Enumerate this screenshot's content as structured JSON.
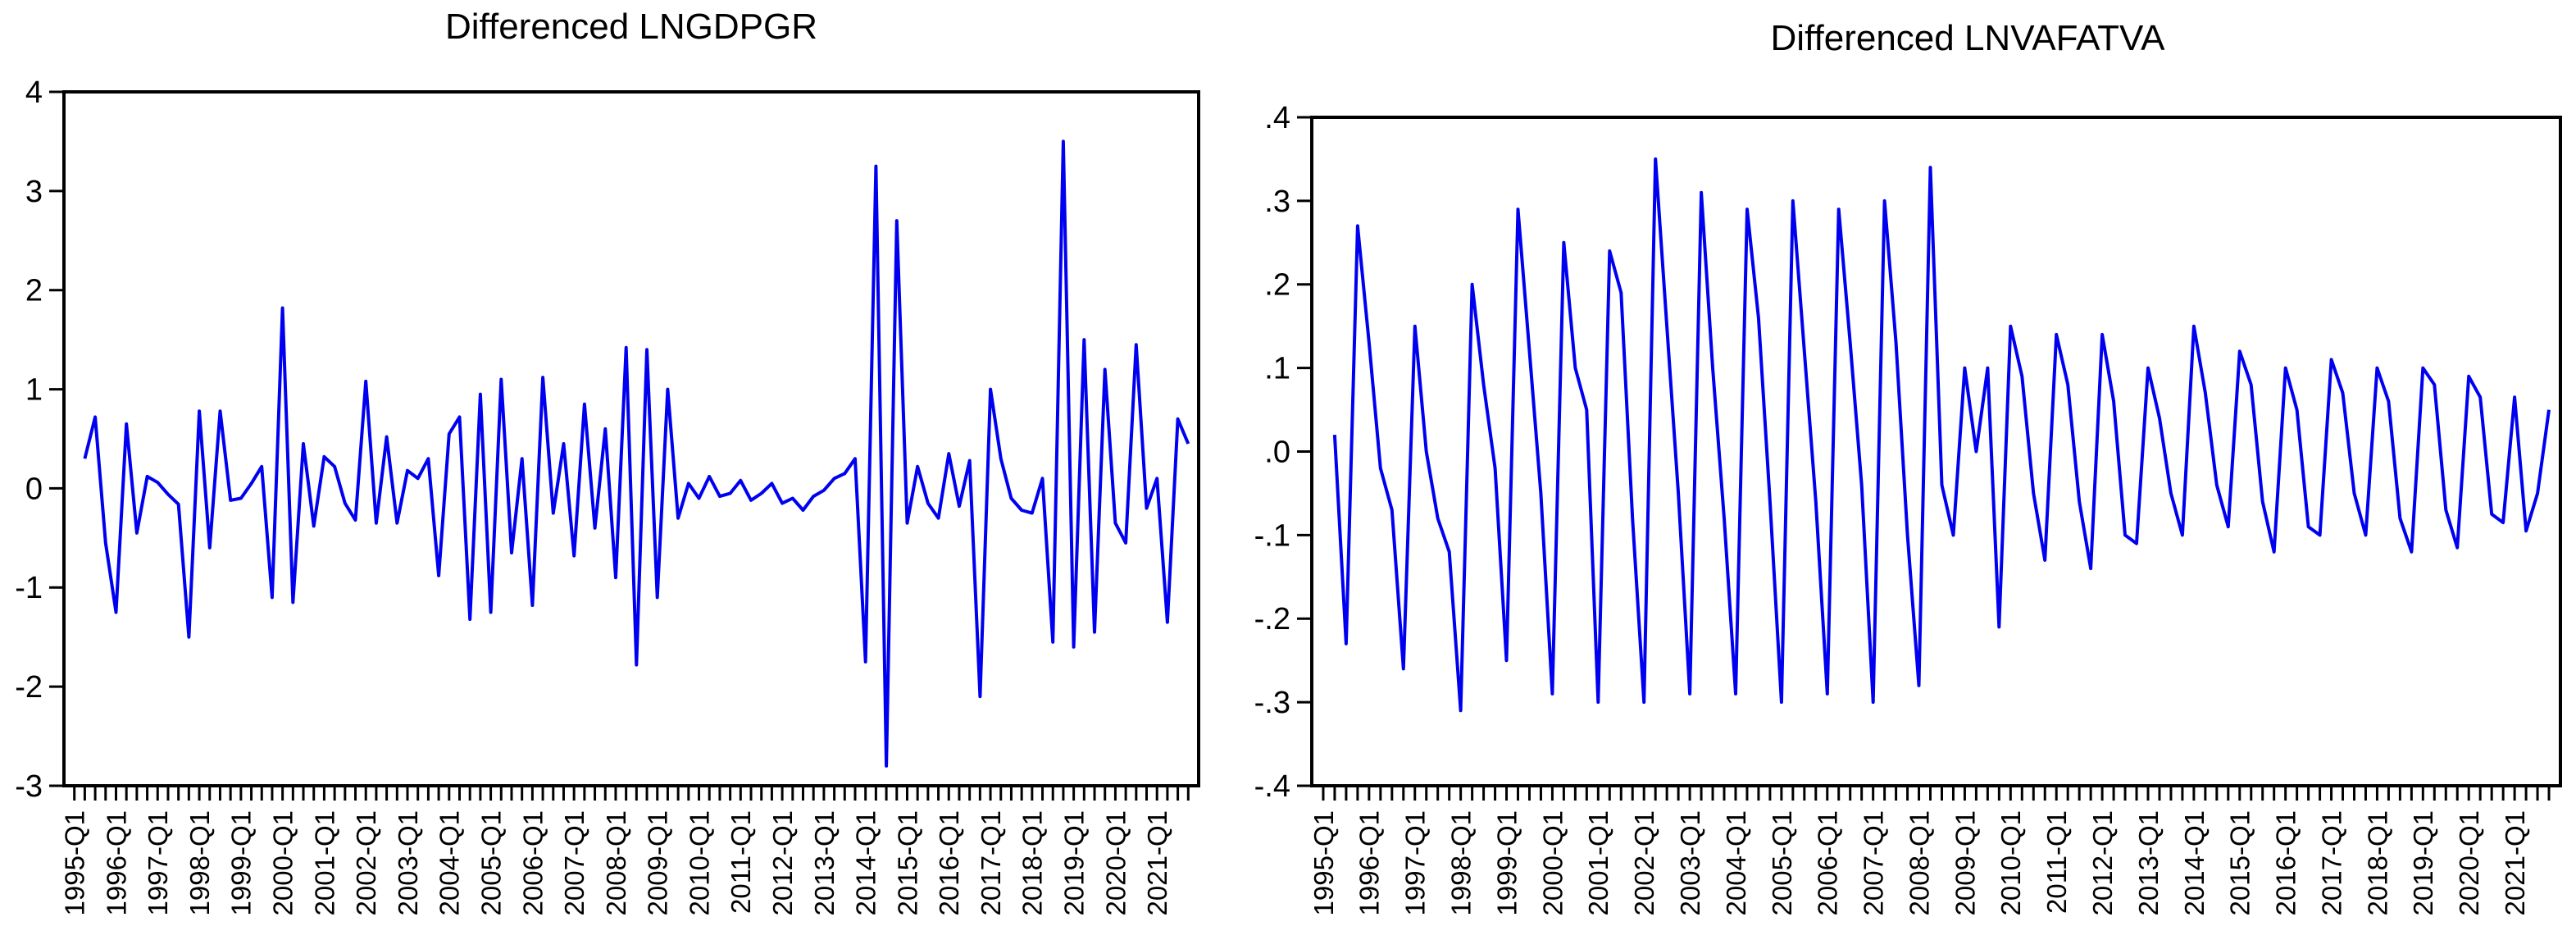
{
  "page": {
    "background_color": "#ffffff",
    "line_color": "#0000f0",
    "axis_color": "#000000"
  },
  "chart_data": [
    {
      "type": "line",
      "title": "Differenced LNGDPGR",
      "legend": "none",
      "grid": false,
      "line_color": "#0000f0",
      "x_freq": "quarterly",
      "x_start": "1995-Q2",
      "x_total_quarters": 108,
      "x_label_every": 4,
      "x_tick_labels": [
        "1995-Q1",
        "1996-Q1",
        "1997-Q1",
        "1998-Q1",
        "1999-Q1",
        "2000-Q1",
        "2001-Q1",
        "2002-Q1",
        "2003-Q1",
        "2004-Q1",
        "2005-Q1",
        "2006-Q1",
        "2007-Q1",
        "2008-Q1",
        "2009-Q1",
        "2010-Q1",
        "2011-Q1",
        "2012-Q1",
        "2013-Q1",
        "2014-Q1",
        "2015-Q1",
        "2016-Q1",
        "2017-Q1",
        "2018-Q1",
        "2019-Q1",
        "2020-Q1",
        "2021-Q1"
      ],
      "ylim": [
        -3,
        4
      ],
      "y_ticks": [
        4,
        3,
        2,
        1,
        0,
        -1,
        -2,
        -3
      ],
      "y_tick_labels": [
        "4",
        "3",
        "2",
        "1",
        "0",
        "-1",
        "-2",
        "-3"
      ],
      "series": [
        {
          "name": "Differenced LNGDPGR",
          "values": [
            0.3,
            0.72,
            -0.55,
            -1.25,
            0.65,
            -0.45,
            0.12,
            0.06,
            -0.06,
            -0.16,
            -1.5,
            0.78,
            -0.6,
            0.78,
            -0.12,
            -0.1,
            0.05,
            0.22,
            -1.1,
            1.82,
            -1.15,
            0.45,
            -0.38,
            0.32,
            0.22,
            -0.15,
            -0.32,
            1.08,
            -0.35,
            0.52,
            -0.35,
            0.18,
            0.1,
            0.3,
            -0.88,
            0.55,
            0.72,
            -1.32,
            0.95,
            -1.25,
            1.1,
            -0.65,
            0.3,
            -1.18,
            1.12,
            -0.25,
            0.45,
            -0.68,
            0.85,
            -0.4,
            0.6,
            -0.9,
            1.42,
            -1.78,
            1.4,
            -1.1,
            1.0,
            -0.3,
            0.05,
            -0.1,
            0.12,
            -0.08,
            -0.05,
            0.08,
            -0.12,
            -0.05,
            0.05,
            -0.15,
            -0.1,
            -0.22,
            -0.08,
            -0.02,
            0.1,
            0.15,
            0.3,
            -1.75,
            3.25,
            -2.8,
            2.7,
            -0.35,
            0.22,
            -0.15,
            -0.3,
            0.35,
            -0.18,
            0.28,
            -2.1,
            1.0,
            0.3,
            -0.1,
            -0.22,
            -0.25,
            0.1,
            -1.55,
            3.5,
            -1.6,
            1.5,
            -1.45,
            1.2,
            -0.35,
            -0.55,
            1.45,
            -0.2,
            0.1,
            -1.35,
            0.7,
            0.45
          ]
        }
      ]
    },
    {
      "type": "line",
      "title": "Differenced LNVAFATVA",
      "legend": "none",
      "grid": false,
      "line_color": "#0000f0",
      "x_freq": "quarterly",
      "x_start": "1995-Q2",
      "x_total_quarters": 108,
      "x_label_every": 4,
      "x_tick_labels": [
        "1995-Q1",
        "1996-Q1",
        "1997-Q1",
        "1998-Q1",
        "1999-Q1",
        "2000-Q1",
        "2001-Q1",
        "2002-Q1",
        "2003-Q1",
        "2004-Q1",
        "2005-Q1",
        "2006-Q1",
        "2007-Q1",
        "2008-Q1",
        "2009-Q1",
        "2010-Q1",
        "2011-Q1",
        "2012-Q1",
        "2013-Q1",
        "2014-Q1",
        "2015-Q1",
        "2016-Q1",
        "2017-Q1",
        "2018-Q1",
        "2019-Q1",
        "2020-Q1",
        "2021-Q1"
      ],
      "ylim": [
        -0.4,
        0.4
      ],
      "y_ticks": [
        0.4,
        0.3,
        0.2,
        0.1,
        0.0,
        -0.1,
        -0.2,
        -0.3,
        -0.4
      ],
      "y_tick_labels": [
        ".4",
        ".3",
        ".2",
        ".1",
        ".0",
        "-.1",
        "-.2",
        "-.3",
        "-.4"
      ],
      "series": [
        {
          "name": "Differenced LNVAFATVA",
          "values": [
            0.02,
            -0.23,
            0.27,
            0.13,
            -0.02,
            -0.07,
            -0.26,
            0.15,
            0.0,
            -0.08,
            -0.12,
            -0.31,
            0.2,
            0.08,
            -0.02,
            -0.25,
            0.29,
            0.12,
            -0.05,
            -0.29,
            0.25,
            0.1,
            0.05,
            -0.3,
            0.24,
            0.19,
            -0.08,
            -0.3,
            0.35,
            0.15,
            -0.05,
            -0.29,
            0.31,
            0.1,
            -0.08,
            -0.29,
            0.29,
            0.16,
            -0.06,
            -0.3,
            0.3,
            0.12,
            -0.06,
            -0.29,
            0.29,
            0.13,
            -0.04,
            -0.3,
            0.3,
            0.13,
            -0.1,
            -0.28,
            0.34,
            -0.04,
            -0.1,
            0.1,
            0.0,
            0.1,
            -0.21,
            0.15,
            0.09,
            -0.05,
            -0.13,
            0.14,
            0.08,
            -0.06,
            -0.14,
            0.14,
            0.06,
            -0.1,
            -0.11,
            0.1,
            0.04,
            -0.05,
            -0.1,
            0.15,
            0.07,
            -0.04,
            -0.09,
            0.12,
            0.08,
            -0.06,
            -0.12,
            0.1,
            0.05,
            -0.09,
            -0.1,
            0.11,
            0.07,
            -0.05,
            -0.1,
            0.1,
            0.06,
            -0.08,
            -0.12,
            0.1,
            0.08,
            -0.07,
            -0.115,
            0.09,
            0.065,
            -0.075,
            -0.085,
            0.065,
            -0.095,
            -0.05,
            0.05
          ]
        }
      ]
    }
  ]
}
